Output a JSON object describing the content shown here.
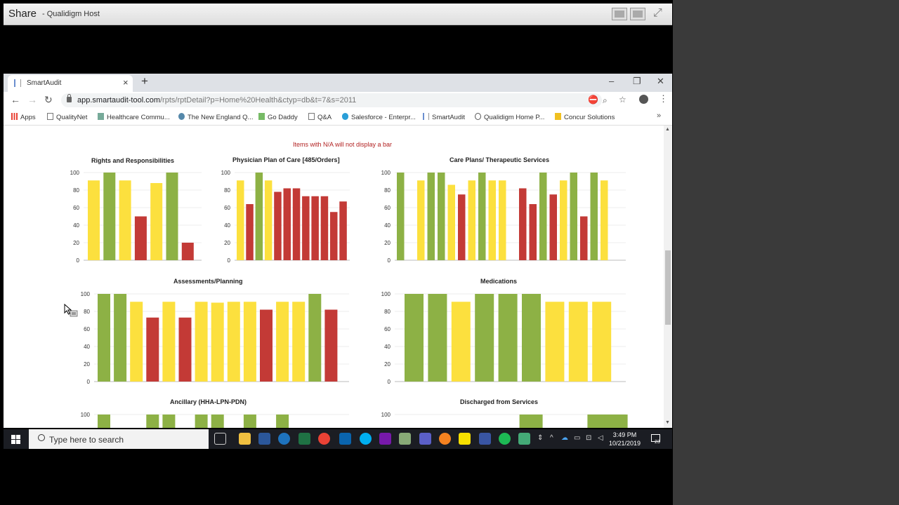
{
  "share_bar": {
    "title": "Share",
    "host": "- Qualidigm Host"
  },
  "browser": {
    "tab_title": "SmartAudit",
    "url_host": "app.smartaudit-tool.com",
    "url_path": "/rpts/rptDetail?p=Home%20Health&ctyp=db&t=7&s=2011",
    "bookmarks": [
      "Apps",
      "QualityNet",
      "Healthcare Commu...",
      "The New England Q...",
      "Go Daddy",
      "Q&A",
      "Salesforce - Enterpr...",
      "SmartAudit",
      "Qualidigm Home P...",
      "Concur Solutions"
    ]
  },
  "report": {
    "note": "Items with N/A will not display a bar"
  },
  "colors": {
    "green": "#8db145",
    "yellow": "#fce03e",
    "red": "#c33a36"
  },
  "chart_data": [
    {
      "type": "bar",
      "title": "Rights and Responsibilities",
      "ylim": [
        0,
        100
      ],
      "yticks": [
        0,
        20,
        40,
        60,
        80,
        100
      ],
      "values": [
        91,
        100,
        91,
        50,
        88,
        100,
        20
      ],
      "bar_colors": [
        "yellow",
        "green",
        "yellow",
        "red",
        "yellow",
        "green",
        "red"
      ]
    },
    {
      "type": "bar",
      "title": "Physician Plan of Care [485/Orders]",
      "ylim": [
        0,
        100
      ],
      "yticks": [
        0,
        20,
        40,
        60,
        80,
        100
      ],
      "values": [
        91,
        64,
        100,
        91,
        78,
        82,
        82,
        73,
        73,
        73,
        55,
        67
      ],
      "bar_colors": [
        "yellow",
        "red",
        "green",
        "yellow",
        "red",
        "red",
        "red",
        "red",
        "red",
        "red",
        "red",
        "red"
      ]
    },
    {
      "type": "bar",
      "title": "Care Plans/ Therapeutic Services",
      "ylim": [
        0,
        100
      ],
      "yticks": [
        0,
        20,
        40,
        60,
        80,
        100
      ],
      "values": [
        100,
        null,
        91,
        100,
        100,
        86,
        75,
        91,
        100,
        91,
        91,
        null,
        82,
        64,
        100,
        75,
        91,
        100,
        50,
        100,
        91
      ],
      "bar_colors": [
        "green",
        null,
        "yellow",
        "green",
        "green",
        "yellow",
        "red",
        "yellow",
        "green",
        "yellow",
        "yellow",
        null,
        "red",
        "red",
        "green",
        "red",
        "yellow",
        "green",
        "red",
        "green",
        "yellow"
      ]
    },
    {
      "type": "bar",
      "title": "Assessments/Planning",
      "ylim": [
        0,
        100
      ],
      "yticks": [
        0,
        20,
        40,
        60,
        80,
        100
      ],
      "values": [
        100,
        100,
        91,
        73,
        91,
        73,
        91,
        90,
        91,
        91,
        82,
        91,
        91,
        100,
        82
      ],
      "bar_colors": [
        "green",
        "green",
        "yellow",
        "red",
        "yellow",
        "red",
        "yellow",
        "yellow",
        "yellow",
        "yellow",
        "red",
        "yellow",
        "yellow",
        "green",
        "red"
      ]
    },
    {
      "type": "bar",
      "title": "Medications",
      "ylim": [
        0,
        100
      ],
      "yticks": [
        0,
        20,
        40,
        60,
        80,
        100
      ],
      "values": [
        100,
        100,
        91,
        100,
        100,
        100,
        91,
        91,
        91
      ],
      "bar_colors": [
        "green",
        "green",
        "yellow",
        "green",
        "green",
        "green",
        "yellow",
        "yellow",
        "yellow"
      ]
    },
    {
      "type": "bar",
      "title": "Ancillary (HHA-LPN-PDN)",
      "ylim": [
        0,
        100
      ],
      "yticks": [
        100
      ],
      "values": [
        100,
        null,
        null,
        100,
        100,
        null,
        100,
        100,
        null,
        100,
        null,
        100,
        null
      ],
      "bar_colors": [
        "green",
        null,
        null,
        "green",
        "green",
        null,
        "green",
        "green",
        null,
        "green",
        null,
        "green",
        null
      ]
    },
    {
      "type": "bar",
      "title": "Discharged from Services",
      "ylim": [
        0,
        100
      ],
      "yticks": [
        100
      ],
      "values": [
        null,
        null,
        null,
        100,
        null,
        null,
        null,
        100,
        100
      ],
      "bar_colors": [
        null,
        null,
        null,
        "green",
        null,
        null,
        null,
        "green",
        "green"
      ]
    }
  ],
  "taskbar": {
    "search_placeholder": "Type here to search",
    "time": "3:49 PM",
    "date": "10/21/2019",
    "notifications": "23"
  }
}
